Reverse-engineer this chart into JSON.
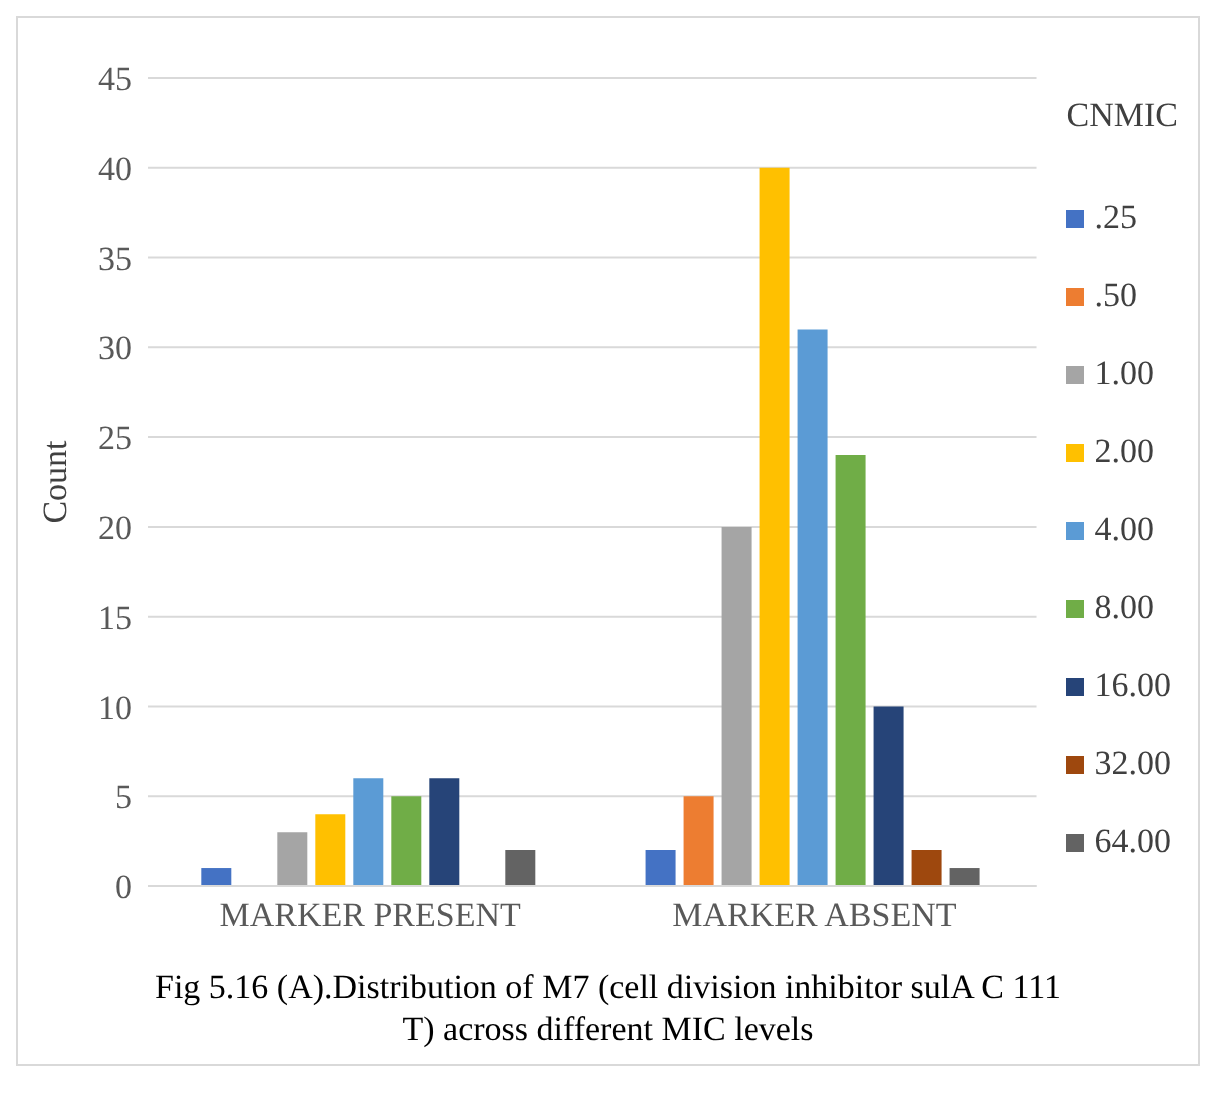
{
  "chart_data": {
    "type": "bar",
    "ylabel": "Count",
    "legend_title": "CNMIC",
    "categories": [
      "MARKER PRESENT",
      "MARKER ABSENT"
    ],
    "series": [
      {
        "name": ".25",
        "color": "#4472c4",
        "values": [
          1,
          2
        ]
      },
      {
        "name": ".50",
        "color": "#ed7d31",
        "values": [
          0,
          5
        ]
      },
      {
        "name": "1.00",
        "color": "#a5a5a5",
        "values": [
          3,
          20
        ]
      },
      {
        "name": "2.00",
        "color": "#ffc000",
        "values": [
          4,
          40
        ]
      },
      {
        "name": "4.00",
        "color": "#5b9bd5",
        "values": [
          6,
          31
        ]
      },
      {
        "name": "8.00",
        "color": "#70ad47",
        "values": [
          5,
          24
        ]
      },
      {
        "name": "16.00",
        "color": "#264478",
        "values": [
          6,
          10
        ]
      },
      {
        "name": "32.00",
        "color": "#9e480e",
        "values": [
          0,
          2
        ]
      },
      {
        "name": "64.00",
        "color": "#636363",
        "values": [
          2,
          1
        ]
      }
    ],
    "ylim": [
      0,
      45
    ],
    "yticks": [
      0,
      5,
      10,
      15,
      20,
      25,
      30,
      35,
      40,
      45
    ],
    "grid": "y",
    "legend": "right",
    "annotations": [
      "Fig 5.16 (A).Distribution of M7 (cell division inhibitor sulA C 111 T) across different MIC levels"
    ]
  }
}
